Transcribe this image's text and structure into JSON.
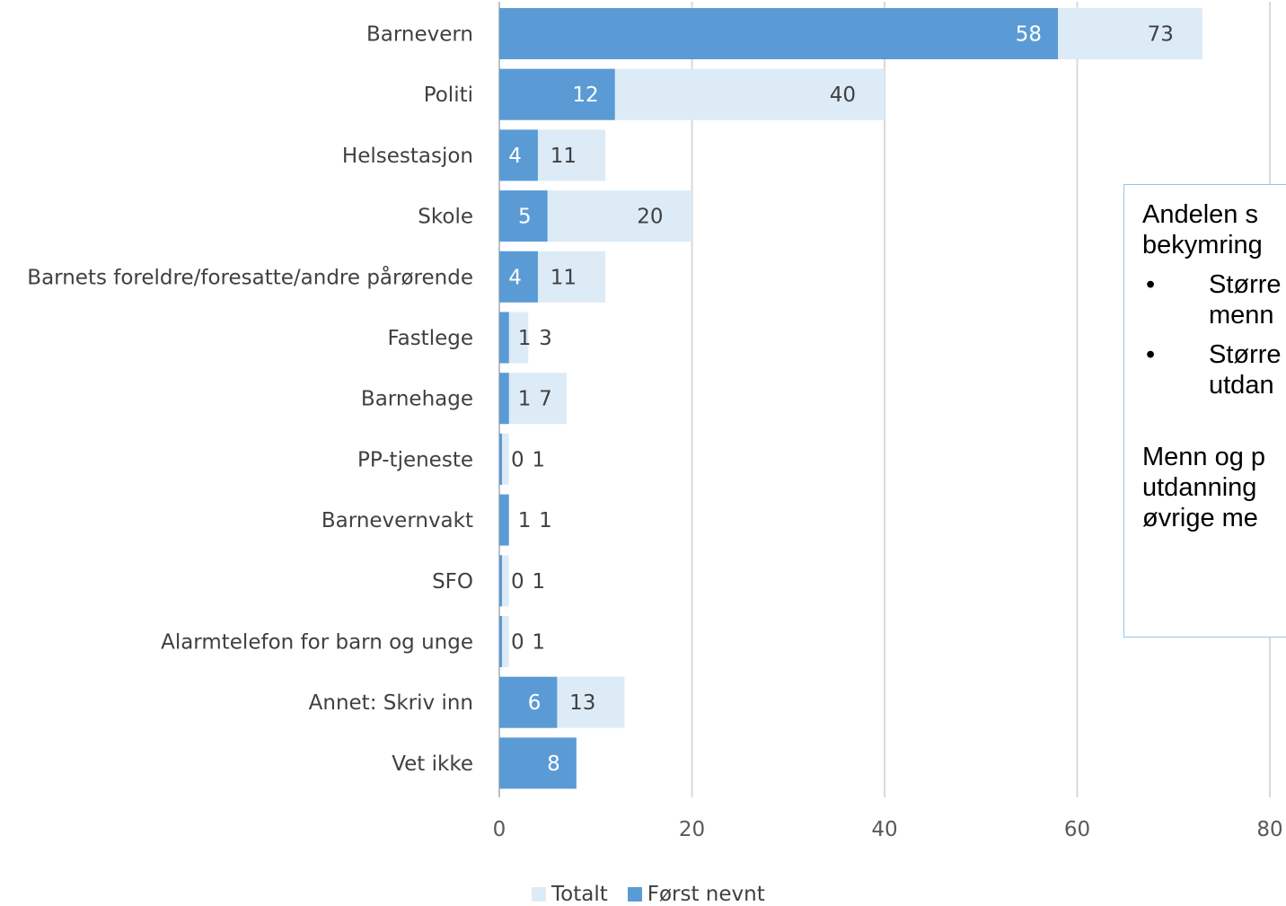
{
  "chart_data": {
    "type": "bar",
    "orientation": "horizontal",
    "categories": [
      "Barnevern",
      "Politi",
      "Helsestasjon",
      "Skole",
      "Barnets foreldre/foresatte/andre pårørende",
      "Fastlege",
      "Barnehage",
      "PP-tjeneste",
      "Barnevernvakt",
      "SFO",
      "Alarmtelefon for barn og unge",
      "Annet: Skriv inn",
      "Vet ikke"
    ],
    "series": [
      {
        "name": "Totalt",
        "values": [
          73,
          40,
          11,
          20,
          11,
          3,
          7,
          1,
          1,
          1,
          1,
          13,
          8
        ],
        "labels": [
          "73",
          "40",
          "11",
          "20",
          "11",
          "3",
          "7",
          "1",
          "1",
          "1",
          "1",
          "13",
          ""
        ],
        "color": "#ddebf7"
      },
      {
        "name": "Først nevnt",
        "values": [
          58,
          12,
          4,
          5,
          4,
          1,
          1,
          0,
          1,
          0,
          0,
          6,
          8
        ],
        "labels": [
          "58",
          "12",
          "4",
          "5",
          "4",
          "1",
          "1",
          "0",
          "1",
          "0",
          "0",
          "6",
          "8"
        ],
        "color": "#5b9bd5"
      }
    ],
    "xlim": [
      0,
      80
    ],
    "xticks": [
      "0",
      "20",
      "40",
      "60",
      "80"
    ],
    "grid": "vertical",
    "legend_position": "bottom"
  },
  "note": {
    "line1": "Andelen s",
    "line2": "bekymring",
    "bullet": "•",
    "bullets": [
      [
        "Større",
        "menn"
      ],
      [
        "Større",
        "utdan"
      ]
    ],
    "para2": [
      "Menn og p",
      "utdanning",
      "øvrige me"
    ]
  }
}
